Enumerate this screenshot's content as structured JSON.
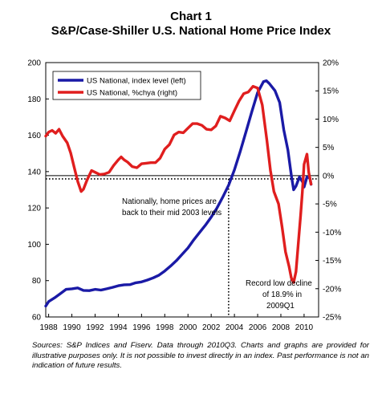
{
  "title": "Chart 1",
  "subtitle": "S&P/Case-Shiller U.S. National Home Price Index",
  "source_note": "Sources: S&P Indices and Fiserv. Data through 2010Q3. Charts and graphs are provided for illustrative purposes only. It is not possible to invest directly in an index. Past performance is not an indication of future results.",
  "chart_data": {
    "type": "line",
    "title": "S&P/Case-Shiller U.S. National Home Price Index",
    "x_ticks": [
      "1988",
      "1990",
      "1992",
      "1994",
      "1996",
      "1998",
      "2000",
      "2002",
      "2004",
      "2006",
      "2008",
      "2010"
    ],
    "xlim": [
      1987.75,
      2011.25
    ],
    "y_left": {
      "ticks": [
        "60",
        "80",
        "100",
        "120",
        "140",
        "160",
        "180",
        "200"
      ],
      "ylim": [
        60,
        200
      ]
    },
    "y_right": {
      "ticks": [
        "-25%",
        "-20%",
        "-15%",
        "-10%",
        "-5%",
        "0%",
        "5%",
        "10%",
        "15%",
        "20%"
      ],
      "ylim": [
        -25,
        20
      ]
    },
    "legend_position": "top-left",
    "series": [
      {
        "name": "US National, index level (left)",
        "axis": "left",
        "color": "#1a1aa6",
        "points": [
          [
            1987.75,
            66
          ],
          [
            1988.0,
            68.5
          ],
          [
            1988.5,
            70.5
          ],
          [
            1989.0,
            72.8
          ],
          [
            1989.5,
            75.2
          ],
          [
            1990.0,
            75.5
          ],
          [
            1990.5,
            76
          ],
          [
            1991.0,
            74.6
          ],
          [
            1991.5,
            74.5
          ],
          [
            1992.0,
            75.2
          ],
          [
            1992.5,
            74.8
          ],
          [
            1993.0,
            75.5
          ],
          [
            1993.5,
            76.3
          ],
          [
            1994.0,
            77.2
          ],
          [
            1994.5,
            77.7
          ],
          [
            1995.0,
            77.8
          ],
          [
            1995.5,
            78.8
          ],
          [
            1996.0,
            79.3
          ],
          [
            1996.5,
            80.3
          ],
          [
            1997.0,
            81.5
          ],
          [
            1997.5,
            83
          ],
          [
            1998.0,
            85.3
          ],
          [
            1998.5,
            88
          ],
          [
            1999.0,
            91
          ],
          [
            1999.5,
            94.5
          ],
          [
            2000.0,
            98
          ],
          [
            2000.5,
            102.5
          ],
          [
            2001.0,
            106.5
          ],
          [
            2001.5,
            110.5
          ],
          [
            2002.0,
            115
          ],
          [
            2002.5,
            120
          ],
          [
            2003.0,
            126
          ],
          [
            2003.5,
            132.5
          ],
          [
            2004.0,
            141
          ],
          [
            2004.5,
            151
          ],
          [
            2005.0,
            162
          ],
          [
            2005.5,
            173
          ],
          [
            2006.0,
            183.5
          ],
          [
            2006.5,
            189.5
          ],
          [
            2006.75,
            190
          ],
          [
            2007.0,
            188.5
          ],
          [
            2007.5,
            184.5
          ],
          [
            2007.9,
            178
          ],
          [
            2008.25,
            163
          ],
          [
            2008.6,
            152
          ],
          [
            2008.9,
            138
          ],
          [
            2009.1,
            130
          ],
          [
            2009.3,
            132
          ],
          [
            2009.6,
            137
          ],
          [
            2009.9,
            134
          ],
          [
            2010.0,
            131.5
          ],
          [
            2010.25,
            137
          ],
          [
            2010.5,
            136.5
          ],
          [
            2010.6,
            133
          ]
        ]
      },
      {
        "name": "US National, %chya (right)",
        "axis": "right",
        "color": "#e01e1e",
        "points": [
          [
            1987.75,
            7
          ],
          [
            1988.0,
            7.7
          ],
          [
            1988.3,
            8
          ],
          [
            1988.6,
            7.5
          ],
          [
            1988.9,
            8.2
          ],
          [
            1989.2,
            7
          ],
          [
            1989.6,
            5.8
          ],
          [
            1989.9,
            4
          ],
          [
            1990.2,
            1.5
          ],
          [
            1990.5,
            -1
          ],
          [
            1990.8,
            -2.8
          ],
          [
            1991.0,
            -2.4
          ],
          [
            1991.3,
            -0.8
          ],
          [
            1991.7,
            0.9
          ],
          [
            1992.0,
            0.6
          ],
          [
            1992.4,
            0.2
          ],
          [
            1992.8,
            0.3
          ],
          [
            1993.2,
            0.6
          ],
          [
            1993.6,
            1.8
          ],
          [
            1994.0,
            2.8
          ],
          [
            1994.25,
            3.3
          ],
          [
            1994.5,
            2.8
          ],
          [
            1994.8,
            2.4
          ],
          [
            1995.2,
            1.6
          ],
          [
            1995.6,
            1.4
          ],
          [
            1996.0,
            2.1
          ],
          [
            1996.4,
            2.2
          ],
          [
            1996.8,
            2.3
          ],
          [
            1997.2,
            2.3
          ],
          [
            1997.6,
            3.1
          ],
          [
            1998.0,
            4.7
          ],
          [
            1998.4,
            5.5
          ],
          [
            1998.8,
            7.2
          ],
          [
            1999.2,
            7.7
          ],
          [
            1999.6,
            7.6
          ],
          [
            2000.0,
            8.4
          ],
          [
            2000.4,
            9.2
          ],
          [
            2000.8,
            9.2
          ],
          [
            2001.2,
            8.9
          ],
          [
            2001.6,
            8.2
          ],
          [
            2002.0,
            8.1
          ],
          [
            2002.4,
            8.8
          ],
          [
            2002.8,
            10.5
          ],
          [
            2003.2,
            10.2
          ],
          [
            2003.6,
            9.7
          ],
          [
            2004.0,
            11.5
          ],
          [
            2004.4,
            13.2
          ],
          [
            2004.8,
            14.5
          ],
          [
            2005.2,
            14.8
          ],
          [
            2005.6,
            15.8
          ],
          [
            2006.0,
            15.5
          ],
          [
            2006.4,
            12.5
          ],
          [
            2006.8,
            6.2
          ],
          [
            2007.1,
            0.9
          ],
          [
            2007.4,
            -2.8
          ],
          [
            2007.8,
            -5
          ],
          [
            2008.1,
            -9
          ],
          [
            2008.4,
            -13.5
          ],
          [
            2008.7,
            -16
          ],
          [
            2008.9,
            -18.1
          ],
          [
            2009.1,
            -18.9
          ],
          [
            2009.3,
            -17
          ],
          [
            2009.5,
            -12
          ],
          [
            2009.7,
            -7
          ],
          [
            2009.85,
            -3
          ],
          [
            2010.0,
            2
          ],
          [
            2010.25,
            3.8
          ],
          [
            2010.4,
            0.6
          ],
          [
            2010.6,
            -1.5
          ]
        ]
      }
    ],
    "reference_lines": [
      {
        "type": "horizontal",
        "axis": "left",
        "y": 136,
        "style": "dotted"
      },
      {
        "type": "vertical",
        "x": 2003.5,
        "style": "dotted"
      },
      {
        "type": "horizontal",
        "axis": "right",
        "y": 0,
        "style": "solid"
      }
    ],
    "annotations": [
      {
        "text": "Nationally, home prices are",
        "line": 1
      },
      {
        "text": "back to their mid 2003 levels",
        "line": 2
      },
      {
        "text": "Record low  decline",
        "line": 3
      },
      {
        "text": "of 18.9% in",
        "line": 4
      },
      {
        "text": "2009Q1",
        "line": 5
      }
    ]
  }
}
